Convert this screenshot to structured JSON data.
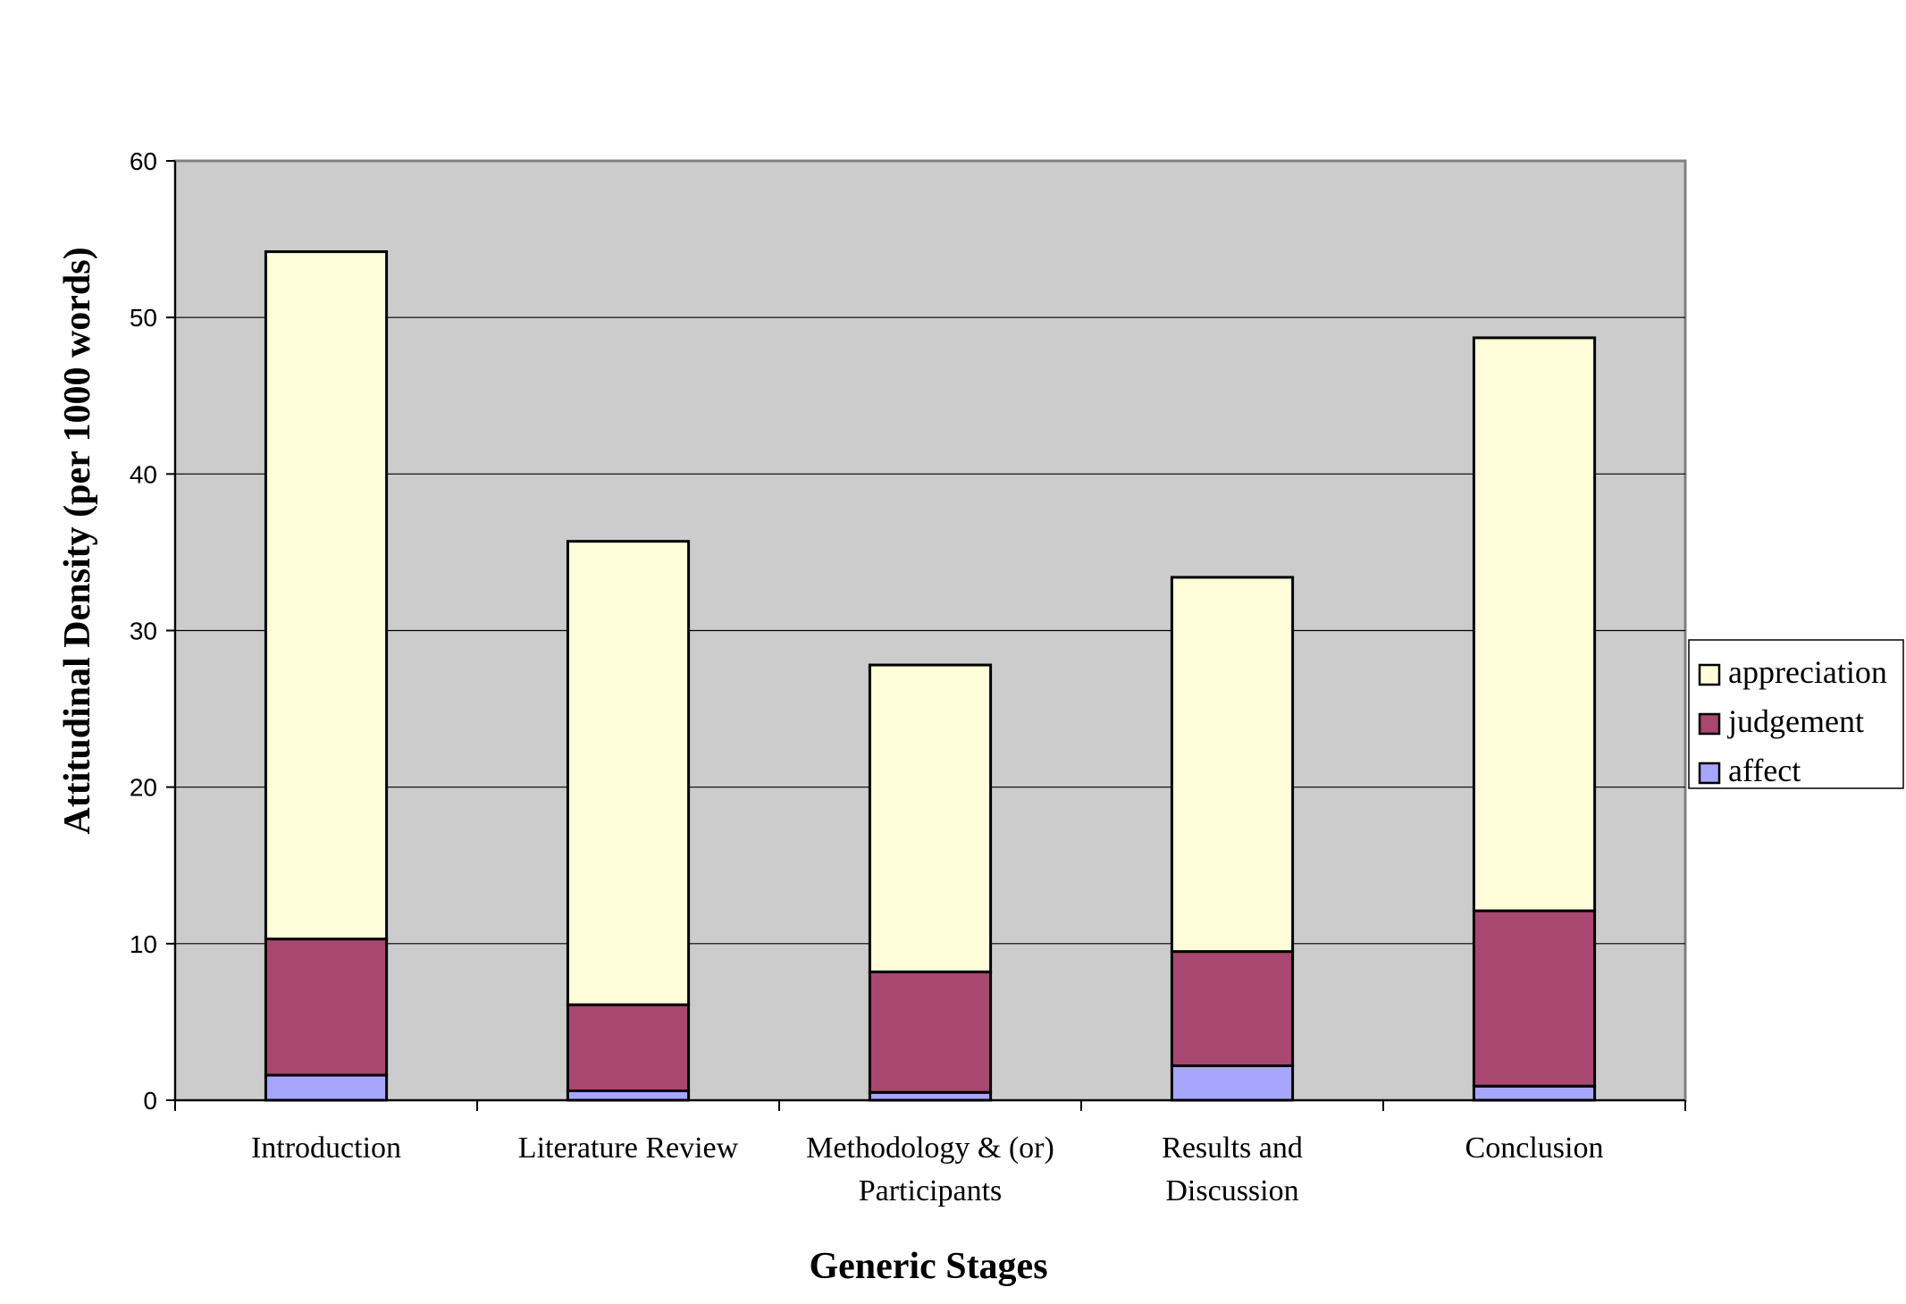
{
  "chart_data": {
    "type": "bar",
    "stacked": true,
    "categories": [
      [
        "Introduction"
      ],
      [
        "Literature Review"
      ],
      [
        "Methodology & (or)",
        "Participants"
      ],
      [
        "Results and",
        "Discussion"
      ],
      [
        "Conclusion"
      ]
    ],
    "series": [
      {
        "name": "affect",
        "color": "#a6a6ff",
        "values": [
          1.6,
          0.6,
          0.5,
          2.2,
          0.9
        ]
      },
      {
        "name": "judgement",
        "color": "#a8476f",
        "values": [
          8.7,
          5.5,
          7.7,
          7.3,
          11.2
        ]
      },
      {
        "name": "appreciation",
        "color": "#fefcd9",
        "values": [
          43.9,
          29.6,
          19.6,
          23.9,
          36.6
        ]
      }
    ],
    "ylim": [
      0,
      60
    ],
    "yticks": [
      0,
      10,
      20,
      30,
      40,
      50,
      60
    ],
    "ylabel": "Attitudinal Density (per 1000 words)",
    "xlabel": "Generic Stages",
    "legend": [
      "appreciation",
      "judgement",
      "affect"
    ],
    "legend_position": "right",
    "grid": true,
    "plot_background": "#cccccc"
  }
}
